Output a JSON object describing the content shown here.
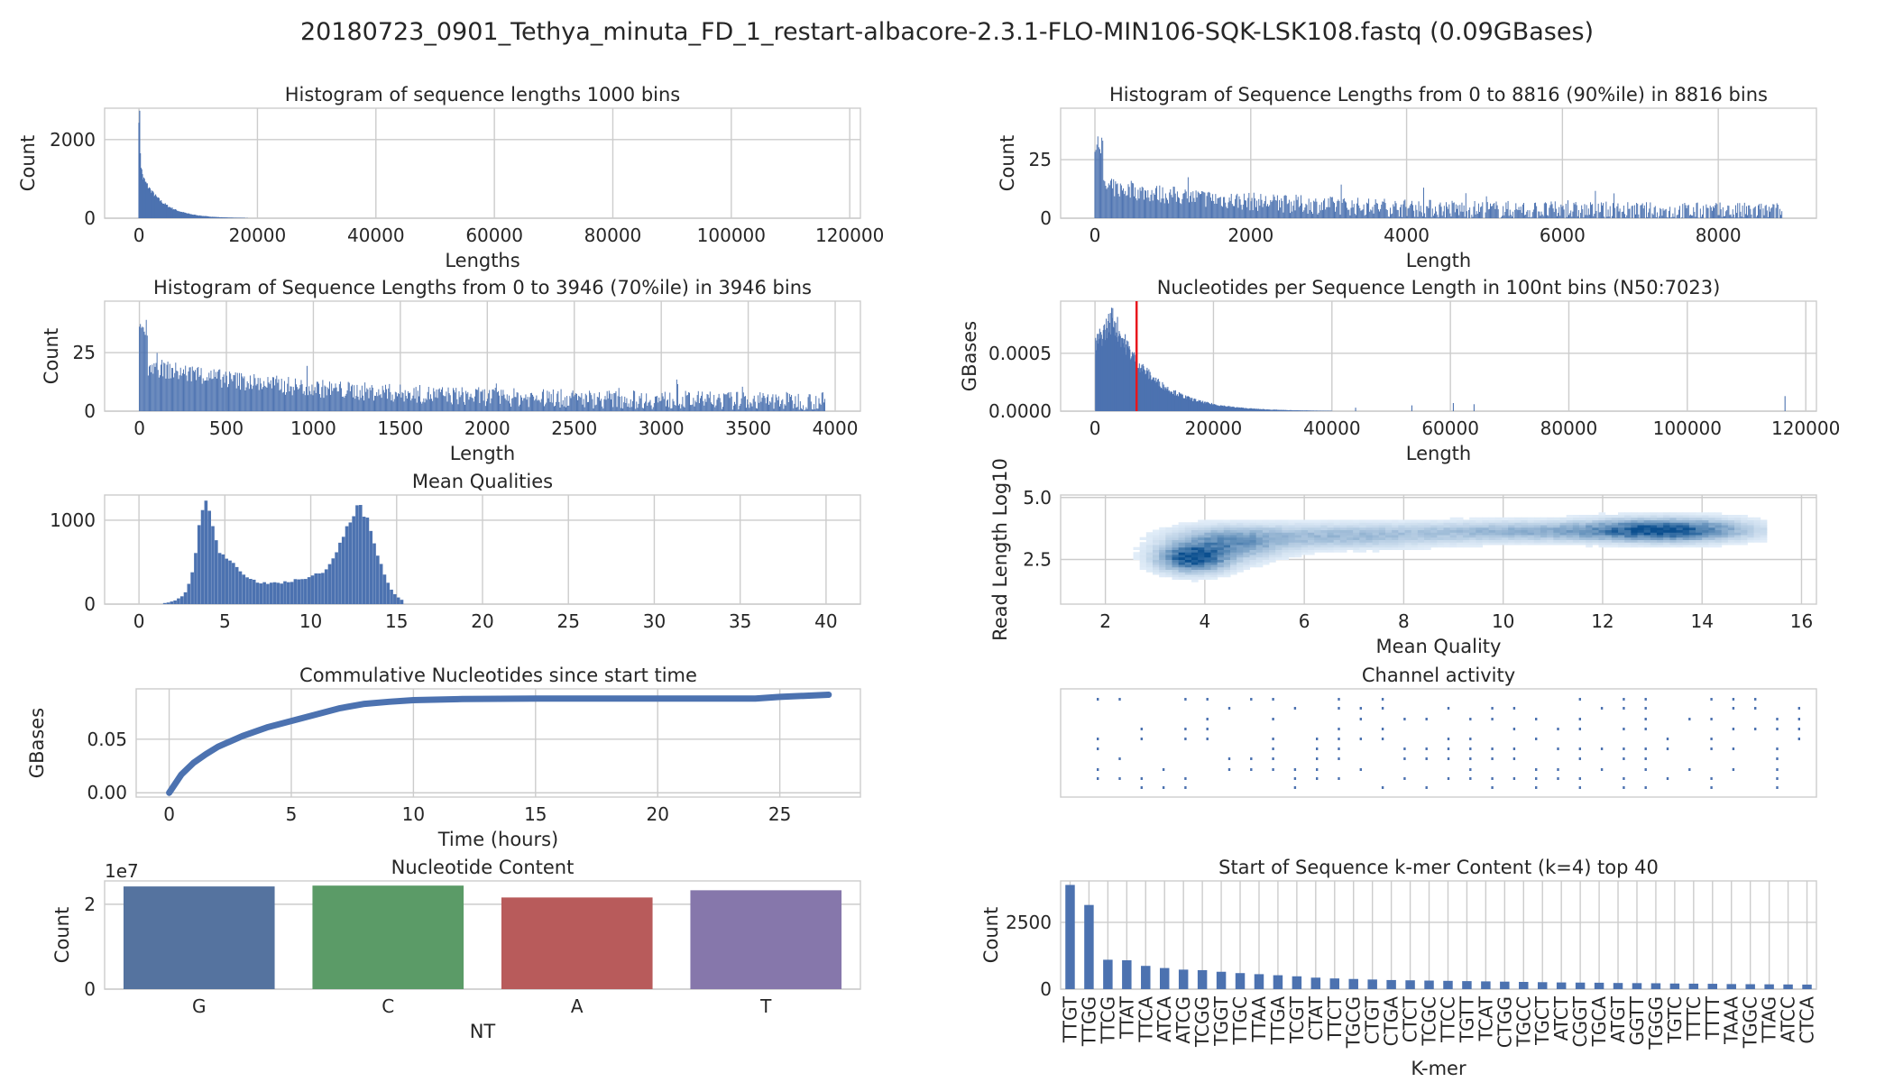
{
  "figure": {
    "suptitle": "20180723_0901_Tethya_minuta_FD_1_restart-albacore-2.3.1-FLO-MIN106-SQK-LSK108.fastq (0.09GBases)"
  },
  "colors": {
    "bar": "#4c72b0",
    "n50": "#e8171d",
    "heat_low": "#f5f9fe",
    "heat_high": "#0b4f8f",
    "grid": "#cccccc"
  },
  "chart_data": [
    {
      "id": "hist_all",
      "type": "bar",
      "title": "Histogram of sequence lengths 1000 bins",
      "xlabel": "Lengths",
      "ylabel": "Count",
      "xlim": [
        -5800,
        121800
      ],
      "ylim": [
        0,
        2800
      ],
      "xticks": [
        0,
        20000,
        40000,
        60000,
        80000,
        100000,
        120000
      ],
      "xticklabels": [
        "0",
        "20000",
        "40000",
        "60000",
        "80000",
        "100000",
        "120000"
      ],
      "yticks": [
        0,
        2000
      ],
      "yticklabels": [
        "0",
        "2000"
      ],
      "shape": {
        "kind": "decay",
        "peak_x": 230,
        "peak": 2700,
        "plateau": 1050,
        "tau": 3500,
        "xmax": 28000
      }
    },
    {
      "id": "hist_90",
      "type": "bar",
      "title": "Histogram of Sequence Lengths from 0 to 8816 (90%ile) in 8816 bins",
      "xlabel": "Length",
      "ylabel": "Count",
      "xlim": [
        -440,
        9260
      ],
      "ylim": [
        0,
        47
      ],
      "xticks": [
        0,
        2000,
        4000,
        6000,
        8000
      ],
      "xticklabels": [
        "0",
        "2000",
        "4000",
        "6000",
        "8000"
      ],
      "yticks": [
        0,
        25
      ],
      "yticklabels": [
        "0",
        "25"
      ],
      "shape": {
        "kind": "noisy",
        "xmax": 8816,
        "peak": 31,
        "start": 14,
        "floor": 2.5,
        "tau": 2200,
        "noise": 4
      }
    },
    {
      "id": "hist_70",
      "type": "bar",
      "title": "Histogram of Sequence Lengths from 0 to 3946 (70%ile) in 3946 bins",
      "xlabel": "Length",
      "ylabel": "Count",
      "xlim": [
        -200,
        4145
      ],
      "ylim": [
        0,
        47
      ],
      "xticks": [
        0,
        500,
        1000,
        1500,
        2000,
        2500,
        3000,
        3500,
        4000
      ],
      "xticklabels": [
        "0",
        "500",
        "1000",
        "1500",
        "2000",
        "2500",
        "3000",
        "3500",
        "4000"
      ],
      "yticks": [
        0,
        25
      ],
      "yticklabels": [
        "0",
        "25"
      ],
      "shape": {
        "kind": "noisy",
        "xmax": 3946,
        "peak": 36,
        "start": 20,
        "floor": 4,
        "tau": 1000,
        "noise": 4
      }
    },
    {
      "id": "nucl_per_len",
      "type": "bar",
      "title": "Nucleotides per Sequence Length in 100nt bins (N50:7023)",
      "xlabel": "Length",
      "ylabel": "GBases",
      "xlim": [
        -5800,
        121800
      ],
      "ylim": [
        0,
        0.00095
      ],
      "xticks": [
        0,
        20000,
        40000,
        60000,
        80000,
        100000,
        120000
      ],
      "xticklabels": [
        "0",
        "20000",
        "40000",
        "60000",
        "80000",
        "100000",
        "120000"
      ],
      "yticks": [
        0,
        0.0005
      ],
      "yticklabels": [
        "0.0000",
        "0.0005"
      ],
      "n50": 7023,
      "shape": {
        "kind": "hump",
        "peak": 0.00083,
        "peak_x": 3000,
        "xmax": 40000
      },
      "outliers": [
        [
          44000,
          3e-05
        ],
        [
          53500,
          5e-05
        ],
        [
          60500,
          7e-05
        ],
        [
          64000,
          6e-05
        ],
        [
          116500,
          0.00013
        ]
      ]
    },
    {
      "id": "qual_len",
      "type": "heatmap",
      "title": "",
      "xlabel": "Mean Quality",
      "ylabel": "Read Length Log10",
      "xlim": [
        1.1,
        16.3
      ],
      "ylim": [
        0.7,
        5.1
      ],
      "xticks": [
        2,
        4,
        6,
        8,
        10,
        12,
        14,
        16
      ],
      "xticklabels": [
        "2",
        "4",
        "6",
        "8",
        "10",
        "12",
        "14",
        "16"
      ],
      "yticks": [
        2.5,
        5.0
      ],
      "yticklabels": [
        "2.5",
        "5.0"
      ],
      "clusters": [
        [
          3.7,
          2.5,
          0.45,
          0.35,
          1.0
        ],
        [
          4.4,
          3.1,
          0.7,
          0.4,
          0.55
        ],
        [
          6.5,
          3.4,
          1.5,
          0.3,
          0.35
        ],
        [
          10.5,
          3.6,
          1.6,
          0.25,
          0.4
        ],
        [
          13.2,
          3.65,
          1.0,
          0.28,
          1.0
        ]
      ]
    },
    {
      "id": "qual_hist",
      "type": "bar",
      "title": "Mean Qualities",
      "xlabel": "",
      "ylabel": "",
      "xlim": [
        -2,
        42
      ],
      "ylim": [
        0,
        1300
      ],
      "xticks": [
        0,
        5,
        10,
        15,
        20,
        25,
        30,
        35,
        40
      ],
      "xticklabels": [
        "0",
        "5",
        "10",
        "15",
        "20",
        "25",
        "30",
        "35",
        "40"
      ],
      "yticks": [
        0,
        1000
      ],
      "yticklabels": [
        "0",
        "1000"
      ],
      "shape": {
        "kind": "bimodal",
        "modes": [
          [
            3.8,
            0.4,
            800
          ],
          [
            4.6,
            1.1,
            500
          ],
          [
            7.2,
            2.0,
            200
          ],
          [
            12.9,
            0.9,
            950
          ],
          [
            11.2,
            1.8,
            320
          ]
        ],
        "xmin": 1.5,
        "xmax": 15.3
      }
    },
    {
      "id": "cumulative",
      "type": "line",
      "title": "Commulative Nucleotides since start time",
      "xlabel": "Time (hours)",
      "ylabel": "GBases",
      "xlim": [
        -1.35,
        28.3
      ],
      "ylim": [
        -0.004,
        0.097
      ],
      "xticks": [
        0,
        5,
        10,
        15,
        20,
        25
      ],
      "xticklabels": [
        "0",
        "5",
        "10",
        "15",
        "20",
        "25"
      ],
      "yticks": [
        0,
        0.05
      ],
      "yticklabels": [
        "0.00",
        "0.05"
      ],
      "x": [
        0,
        0.5,
        1,
        1.5,
        2,
        3,
        4,
        5,
        6,
        7,
        8,
        9,
        10,
        12,
        15,
        20,
        24,
        25,
        26,
        27
      ],
      "y": [
        0,
        0.017,
        0.028,
        0.036,
        0.043,
        0.053,
        0.061,
        0.067,
        0.073,
        0.079,
        0.083,
        0.085,
        0.0865,
        0.0875,
        0.088,
        0.088,
        0.088,
        0.0895,
        0.0905,
        0.0915
      ]
    },
    {
      "id": "channels",
      "type": "scatter",
      "title": "Channel activity",
      "xlabel": "",
      "ylabel": ""
    },
    {
      "id": "nt_content",
      "type": "bar",
      "title": "Nucleotide Content",
      "xlabel": "NT",
      "ylabel": "Count",
      "offset_text": "1e7",
      "categories": [
        "G",
        "C",
        "A",
        "T"
      ],
      "values": [
        2.42,
        2.44,
        2.16,
        2.33
      ],
      "bar_colors": [
        "#55739f",
        "#5b9b67",
        "#b85b5b",
        "#8677ab"
      ],
      "ylim": [
        0,
        2.55
      ],
      "yticks": [
        0,
        2
      ],
      "yticklabels": [
        "0",
        "2"
      ]
    },
    {
      "id": "kmer",
      "type": "bar",
      "title": "Start of Sequence k-mer Content (k=4) top 40",
      "xlabel": "K-mer",
      "ylabel": "Count",
      "categories": [
        "TTGT",
        "TTGG",
        "TTCG",
        "TTAT",
        "TTCA",
        "ATCA",
        "ATCG",
        "TCGG",
        "TGGT",
        "TTGC",
        "TTAA",
        "TTGA",
        "TCGT",
        "CTAT",
        "TTCT",
        "TGCG",
        "CTGT",
        "CTGA",
        "CTCT",
        "TCGC",
        "TTCC",
        "TGTT",
        "TCAT",
        "CTGG",
        "TGCC",
        "TGCT",
        "ATCT",
        "CGGT",
        "TGCA",
        "ATGT",
        "GGTT",
        "TGGG",
        "TGTC",
        "TTTC",
        "TTTT",
        "TAAA",
        "TGGC",
        "TTAG",
        "ATCC",
        "CTCA"
      ],
      "values": [
        3900,
        3150,
        1100,
        1080,
        870,
        790,
        730,
        710,
        650,
        600,
        560,
        520,
        480,
        430,
        400,
        380,
        360,
        340,
        330,
        320,
        310,
        300,
        290,
        280,
        270,
        260,
        250,
        245,
        240,
        230,
        225,
        220,
        210,
        205,
        200,
        190,
        185,
        180,
        175,
        170
      ],
      "ylim": [
        0,
        4050
      ],
      "yticks": [
        0,
        2500
      ],
      "yticklabels": [
        "0",
        "2500"
      ]
    }
  ]
}
